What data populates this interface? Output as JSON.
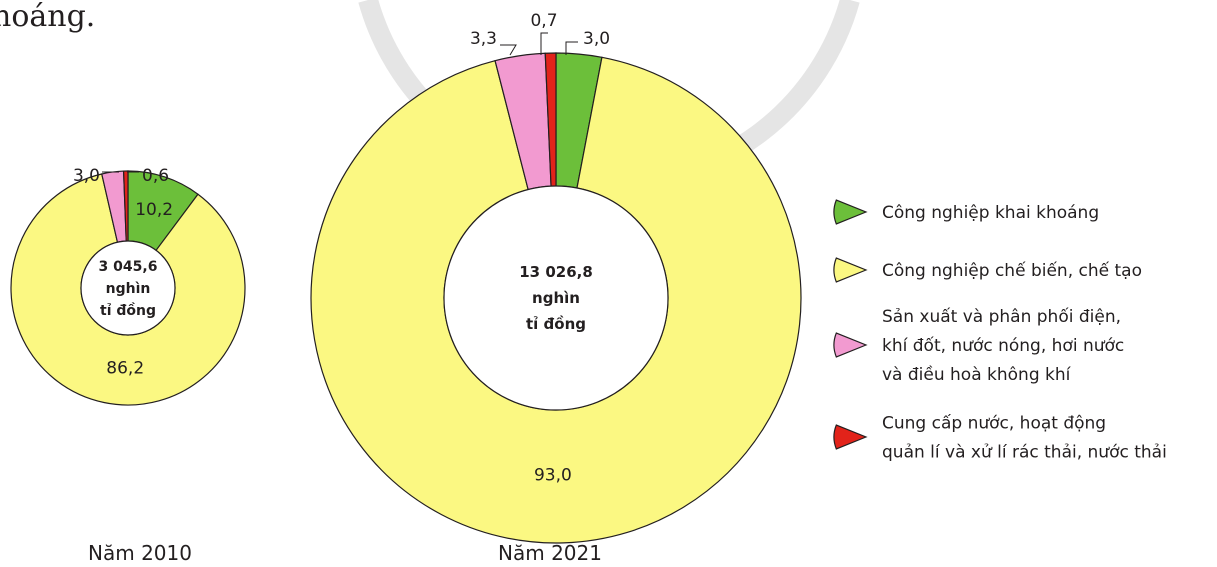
{
  "header_fragment": "hoáng.",
  "colors": {
    "mining": "#6cbf3a",
    "manufacturing": "#fbf882",
    "power": "#f29ad0",
    "water": "#e2231a",
    "outline": "#231f20",
    "watermark": "#e5e5e5"
  },
  "chart_data": {
    "type": "pie",
    "variant": "donut",
    "categories": [
      "Công nghiệp khai khoáng",
      "Công nghiệp chế biến, chế tạo",
      "Sản xuất và phân phối điện, khí đốt, nước nóng, hơi nước và điều hoà không khí",
      "Cung cấp nước, hoạt động quản lí và xử lí rác thải, nước thải"
    ],
    "charts": [
      {
        "caption": "Năm 2010",
        "center_lines": [
          "3 045,6",
          "nghìn",
          "tỉ đồng"
        ],
        "values": [
          10.2,
          86.2,
          3.0,
          0.6
        ],
        "labels": [
          "10,2",
          "86,2",
          "3,0",
          "0,6"
        ]
      },
      {
        "caption": "Năm 2021",
        "center_lines": [
          "13 026,8",
          "nghìn",
          "tỉ đồng"
        ],
        "values": [
          3.0,
          93.0,
          3.3,
          0.7
        ],
        "labels": [
          "3,0",
          "93,0",
          "3,3",
          "0,7"
        ]
      }
    ]
  },
  "legend": {
    "items": [
      {
        "lines": [
          "Công nghiệp khai khoáng"
        ]
      },
      {
        "lines": [
          "Công nghiệp chế biến, chế tạo"
        ]
      },
      {
        "lines": [
          "Sản xuất và phân phối điện,",
          "khí đốt, nước nóng, hơi nước",
          "và điều hoà không khí"
        ]
      },
      {
        "lines": [
          "Cung cấp nước, hoạt động",
          "quản lí và xử lí rác thải, nước thải"
        ]
      }
    ]
  }
}
